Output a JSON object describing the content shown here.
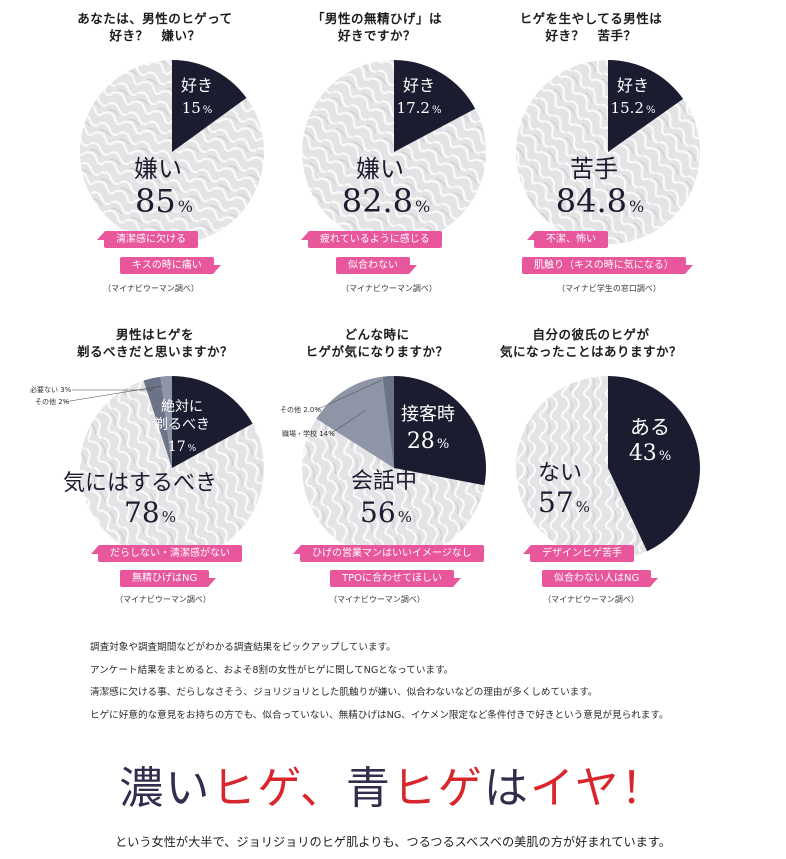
{
  "colors": {
    "dark": "#1b1c30",
    "gray": "#6c7386",
    "gray_light": "#8e95a7",
    "pink": "#e8569b",
    "red": "#d8262c",
    "navy_text": "#302e4c"
  },
  "chart_data": [
    {
      "type": "pie",
      "title_lines": [
        "あなたは、男性のヒゲって",
        "好き？　嫌い？"
      ],
      "slices": [
        {
          "label": "好き",
          "value": 15,
          "display": "15",
          "unit": "%"
        },
        {
          "label": "嫌い",
          "value": 85,
          "display": "85",
          "unit": "%"
        }
      ],
      "tags": [
        "清潔感に欠ける",
        "キスの時に痛い"
      ],
      "source": "（マイナビウーマン調べ）"
    },
    {
      "type": "pie",
      "title_lines": [
        "「男性の無精ひげ」は",
        "好きですか？"
      ],
      "slices": [
        {
          "label": "好き",
          "value": 17.2,
          "display": "17.2",
          "unit": "%"
        },
        {
          "label": "嫌い",
          "value": 82.8,
          "display": "82.8",
          "unit": "%"
        }
      ],
      "tags": [
        "疲れているように感じる",
        "似合わない"
      ],
      "source": "（マイナビウーマン調べ）"
    },
    {
      "type": "pie",
      "title_lines": [
        "ヒゲを生やしてる男性は",
        "好き？　苦手？"
      ],
      "slices": [
        {
          "label": "好き",
          "value": 15.2,
          "display": "15.2",
          "unit": "%"
        },
        {
          "label": "苦手",
          "value": 84.8,
          "display": "84.8",
          "unit": "%"
        }
      ],
      "tags": [
        "不潔、怖い",
        "肌触り（キスの時に気になる）"
      ],
      "source": "（マイナビ学生の窓口調べ）"
    },
    {
      "type": "pie",
      "title_lines": [
        "男性はヒゲを",
        "剃るべきだと思いますか？"
      ],
      "slices": [
        {
          "label": "絶対に剃るべき",
          "label_lines": [
            "絶対に",
            "剃るべき"
          ],
          "value": 17,
          "display": "17",
          "unit": "%"
        },
        {
          "label": "気にはするべき",
          "value": 78,
          "display": "78",
          "unit": "%"
        },
        {
          "label": "必要ない",
          "value": 3,
          "display": "必要ない 3%"
        },
        {
          "label": "その他",
          "value": 2,
          "display": "その他 2%"
        }
      ],
      "tags": [
        "だらしない・清潔感がない",
        "無精ひげはNG"
      ],
      "source": "（マイナビウーマン調べ）"
    },
    {
      "type": "pie",
      "title_lines": [
        "どんな時に",
        "ヒゲが気になりますか？"
      ],
      "slices": [
        {
          "label": "接客時",
          "value": 28,
          "display": "28",
          "unit": "%"
        },
        {
          "label": "会話中",
          "value": 56,
          "display": "56",
          "unit": "%"
        },
        {
          "label": "職場・学校",
          "value": 14,
          "display": "職場・学校 14%"
        },
        {
          "label": "その他",
          "value": 2,
          "display": "その他 2.0%"
        }
      ],
      "tags": [
        "ひげの営業マンはいいイメージなし",
        "TPOに合わせてほしい"
      ],
      "source": "（マイナビウーマン調べ）"
    },
    {
      "type": "pie",
      "title_lines": [
        "自分の彼氏のヒゲが",
        "気になったことはありますか？"
      ],
      "slices": [
        {
          "label": "ある",
          "value": 43,
          "display": "43",
          "unit": "%"
        },
        {
          "label": "ない",
          "value": 57,
          "display": "57",
          "unit": "%"
        }
      ],
      "tags": [
        "デザインヒゲ苦手",
        "似合わない人はNG"
      ],
      "source": "（マイナビウーマン調べ）"
    }
  ],
  "notes": [
    "調査対象や調査期間などがわかる調査結果をピックアップしています。",
    "アンケート結果をまとめると、およそ8割の女性がヒゲに関してNGとなっています。",
    "清潔感に欠ける事、だらしなさそう、ジョリジョリとした肌触りが嫌い、似合わないなどの理由が多くしめています。",
    "ヒゲに好意的な意見をお持ちの方でも、似合っていない、無精ひげはNG、イケメン限定など条件付きで好きという意見が見られます。"
  ],
  "headline": {
    "part1": "濃い",
    "part2": "ヒゲ、",
    "part3": "青",
    "part4": "ヒゲ",
    "part5": "は",
    "part6": "イヤ！"
  },
  "subline": "という女性が大半で、ジョリジョリのヒゲ肌よりも、つるつるスベスベの美肌の方が好まれています。"
}
